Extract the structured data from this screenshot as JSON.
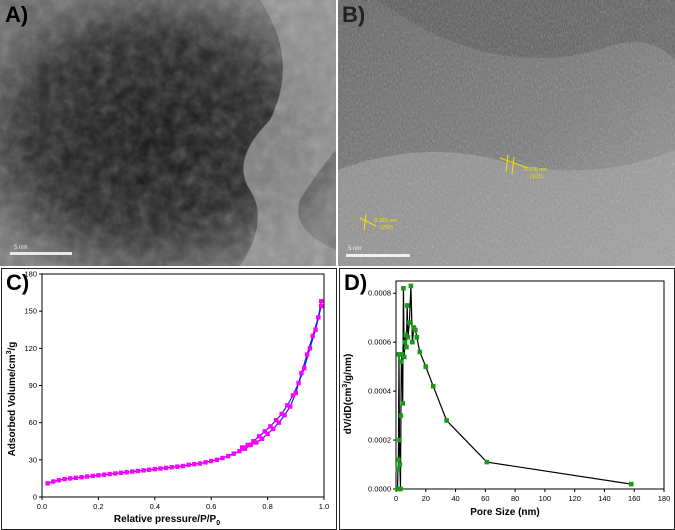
{
  "panels": {
    "a": {
      "label": "A)",
      "scale_bar_text": "5 nm"
    },
    "b": {
      "label": "B)",
      "scale_bar_text": "5 nm",
      "annotations": [
        {
          "spacing": "0.376 nm",
          "plane": "(101)"
        },
        {
          "spacing": "0.325 nm",
          "plane": "(200)"
        }
      ]
    },
    "c": {
      "label": "C)"
    },
    "d": {
      "label": "D)"
    }
  },
  "colors": {
    "adsorption": "#ff00ff",
    "desorption_line": "#1a1aff",
    "pore_marker": "#1a9a1a",
    "pore_line": "#000000",
    "tem_label": "#000000"
  },
  "chart_data": [
    {
      "type": "scatter",
      "panel": "C",
      "xlabel": "Relative pressure/P/P",
      "xlabel_sub": "0",
      "ylabel": "Adsorbed Volume/cm",
      "ylabel_sup": "3",
      "ylabel_tail": "/g",
      "xlim": [
        0.0,
        1.0
      ],
      "ylim": [
        0,
        180
      ],
      "xticks": [
        "0.0",
        "0.2",
        "0.4",
        "0.6",
        "0.8",
        "1.0"
      ],
      "yticks": [
        "0",
        "30",
        "60",
        "90",
        "120",
        "150",
        "180"
      ],
      "series": [
        {
          "x": [
            0.02,
            0.04,
            0.06,
            0.08,
            0.1,
            0.12,
            0.14,
            0.16,
            0.18,
            0.2,
            0.22,
            0.24,
            0.26,
            0.28,
            0.3,
            0.32,
            0.34,
            0.36,
            0.38,
            0.4,
            0.42,
            0.44,
            0.46,
            0.48,
            0.5,
            0.52,
            0.54,
            0.56,
            0.58,
            0.6,
            0.62,
            0.64,
            0.66,
            0.68,
            0.7,
            0.72,
            0.74,
            0.76,
            0.78,
            0.8,
            0.82,
            0.84,
            0.86,
            0.88,
            0.9,
            0.92,
            0.94,
            0.96,
            0.98,
            0.99
          ],
          "y": [
            11,
            12.5,
            13.5,
            14.5,
            15,
            15.5,
            16,
            16.5,
            17,
            17.5,
            18,
            18.5,
            19,
            19.5,
            20,
            20.5,
            21,
            21.5,
            22,
            22.5,
            23,
            23.5,
            24,
            24.5,
            25,
            26,
            26.5,
            27,
            28,
            29,
            30,
            31.5,
            33,
            35,
            37,
            39,
            42,
            44,
            47,
            51,
            55,
            60,
            66,
            73,
            84,
            100,
            115,
            130,
            145,
            158
          ]
        },
        {
          "x": [
            0.99,
            0.97,
            0.95,
            0.93,
            0.91,
            0.89,
            0.87,
            0.85,
            0.83,
            0.81,
            0.79,
            0.77,
            0.75,
            0.73,
            0.71
          ],
          "y": [
            154,
            135,
            120,
            104,
            92,
            82,
            74,
            67,
            62,
            57,
            53,
            49,
            45,
            42,
            40
          ]
        }
      ]
    },
    {
      "type": "line",
      "panel": "D",
      "xlabel": "Pore Size (nm)",
      "ylabel": "dV/dD(cm",
      "ylabel_sup": "3",
      "ylabel_tail": "/g/nm)",
      "xlim": [
        0,
        180
      ],
      "ylim": [
        0,
        0.00085
      ],
      "xticks": [
        "0",
        "20",
        "40",
        "60",
        "80",
        "100",
        "120",
        "140",
        "160",
        "180"
      ],
      "yticks": [
        "0.0000",
        "0.0002",
        "0.0004",
        "0.0006",
        "0.0008"
      ],
      "series": [
        {
          "x": [
            1.0,
            1.3,
            1.6,
            2.0,
            2.3,
            2.6,
            3.0,
            3.3,
            3.6,
            4.0,
            4.5,
            5.0,
            5.5,
            6.0,
            6.5,
            7.0,
            7.5,
            8.0,
            9.0,
            10,
            11,
            12,
            13,
            14,
            16,
            20,
            25,
            34,
            61,
            158
          ],
          "y": [
            0.0,
            8e-05,
            0.00012,
            0.00055,
            0.0002,
            0.0001,
            0.0,
            0.0003,
            0.00052,
            0.00055,
            0.00035,
            0.00082,
            0.00054,
            0.0006,
            0.00063,
            0.00058,
            0.00075,
            0.00062,
            0.00068,
            0.00083,
            0.0006,
            0.00066,
            0.00065,
            0.00062,
            0.00056,
            0.0005,
            0.00042,
            0.00028,
            0.00011,
            2e-05
          ]
        }
      ]
    }
  ]
}
